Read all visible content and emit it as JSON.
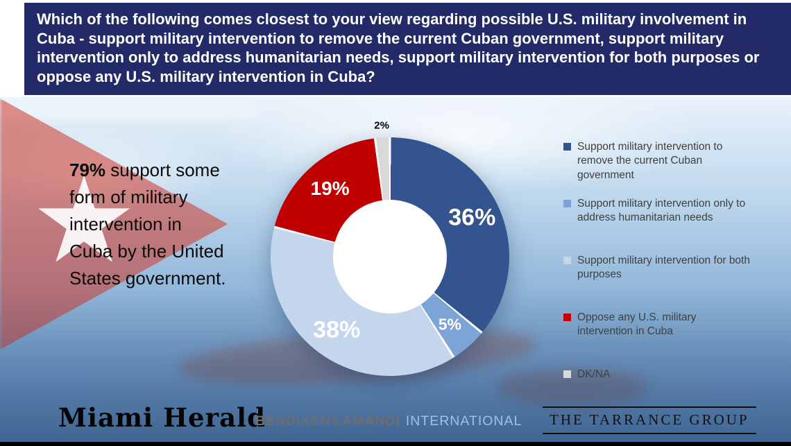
{
  "banner": {
    "question": "Which of the following comes closest to your view regarding possible U.S. military involvement in Cuba - support military intervention to remove the current Cuban government, support military intervention only to address humanitarian needs, support military intervention for both purposes or oppose any U.S. military intervention in Cuba?",
    "bg_color": "#222a68"
  },
  "summary": {
    "highlight": "79%",
    "rest": " support some form of military intervention in Cuba by the United States government."
  },
  "chart_data": {
    "type": "pie",
    "donut": true,
    "title": "",
    "labels": [
      "Support military intervention to remove the current Cuban government",
      "Support military intervention only to address humanitarian needs",
      "Support military intervention for both purposes",
      "Oppose any U.S. military intervention in Cuba",
      "DK/NA"
    ],
    "values": [
      36,
      5,
      38,
      19,
      2
    ],
    "value_labels": [
      "36%",
      "5%",
      "38%",
      "19%",
      "2%"
    ],
    "colors": [
      "#33548f",
      "#7da4d6",
      "#c3d6ec",
      "#c00000",
      "#d9d9d9"
    ],
    "start_angle_deg": 0,
    "direction": "clockwise",
    "legend_position": "right"
  },
  "footer": {
    "miami_herald": "Miami Herald",
    "bendixen_1": "BENDIXEN",
    "bendixen_amp": "&",
    "bendixen_2": "AMANDI",
    "bendixen_3": "INTERNATIONAL",
    "tarrance": "THE TARRANCE GROUP"
  }
}
